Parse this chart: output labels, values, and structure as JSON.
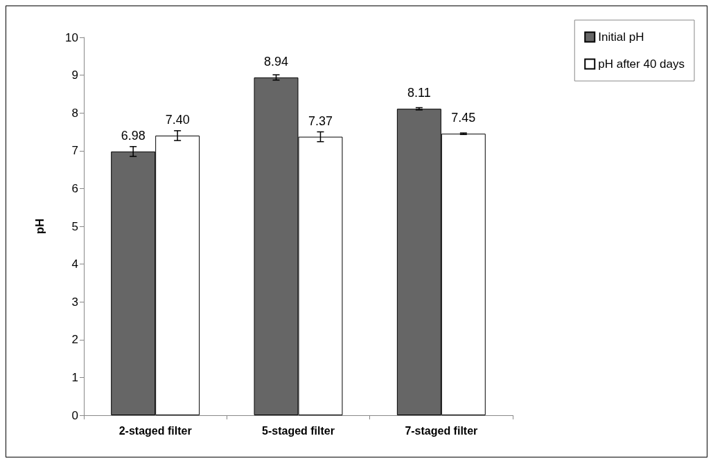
{
  "chart_data": {
    "type": "bar",
    "ylabel": "pH",
    "categories": [
      "2-staged filter",
      "5-staged filter",
      "7-staged filter"
    ],
    "series": [
      {
        "name": "Initial pH",
        "color": "#666666",
        "values": [
          6.98,
          8.94,
          8.11
        ],
        "errors": [
          0.13,
          0.07,
          0.03
        ],
        "value_labels": [
          "6.98",
          "8.94",
          "8.11"
        ]
      },
      {
        "name": "pH after 40 days",
        "color": "#ffffff",
        "values": [
          7.4,
          7.37,
          7.45
        ],
        "errors": [
          0.13,
          0.13,
          0.02
        ],
        "value_labels": [
          "7.40",
          "7.37",
          "7.45"
        ]
      }
    ],
    "ylim": [
      0,
      10
    ],
    "yticks": [
      0,
      1,
      2,
      3,
      4,
      5,
      6,
      7,
      8,
      9,
      10
    ],
    "grid": false,
    "legend": "top right"
  }
}
